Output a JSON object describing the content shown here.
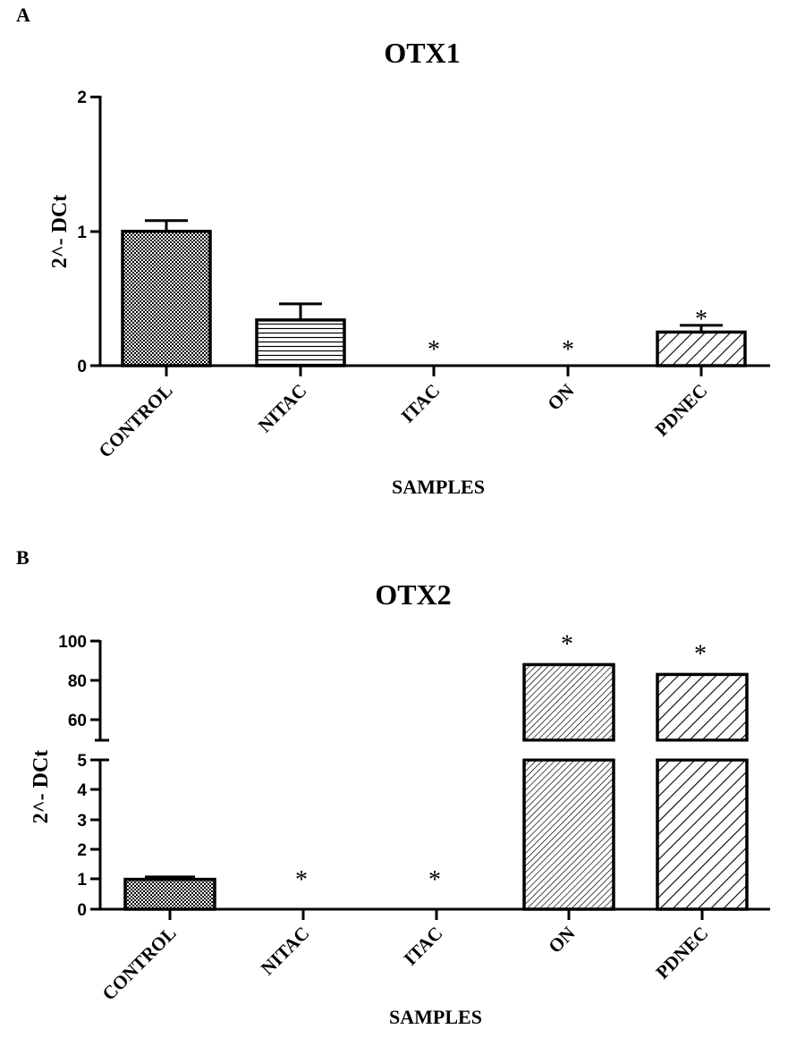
{
  "chart_data": [
    {
      "panel": "A",
      "type": "bar",
      "title": "OTX1",
      "xlabel": "SAMPLES",
      "ylabel": "2^- DCt",
      "ylim": [
        0,
        2
      ],
      "yticks": [
        "0",
        "1",
        "2"
      ],
      "categories": [
        "CONTROL",
        "NITAC",
        "ITAC",
        "ON",
        "PDNEC"
      ],
      "values": [
        1.0,
        0.34,
        0,
        0,
        0.25
      ],
      "errors": [
        0.08,
        0.12,
        0,
        0,
        0.05
      ],
      "patterns": [
        "checker",
        "hlines",
        "none",
        "none",
        "diag-wide"
      ],
      "significance": [
        "",
        "",
        "*",
        "*",
        "*"
      ]
    },
    {
      "panel": "B",
      "type": "bar",
      "title": "OTX2",
      "xlabel": "SAMPLES",
      "ylabel": "2^- DCt",
      "axis_break": {
        "lower": [
          0,
          5
        ],
        "upper": [
          50,
          100
        ]
      },
      "yticks_lower": [
        "0",
        "1",
        "2",
        "3",
        "4",
        "5"
      ],
      "yticks_upper": [
        "60",
        "80",
        "100"
      ],
      "categories": [
        "CONTROL",
        "NITAC",
        "ITAC",
        "ON",
        "PDNEC"
      ],
      "values": [
        1.0,
        0,
        0,
        88,
        83
      ],
      "errors": [
        0.08,
        0,
        0,
        0.3,
        0
      ],
      "patterns": [
        "checker",
        "none",
        "none",
        "diag-fine",
        "diag-wide"
      ],
      "significance": [
        "",
        "*",
        "*",
        "*",
        "*"
      ]
    }
  ]
}
